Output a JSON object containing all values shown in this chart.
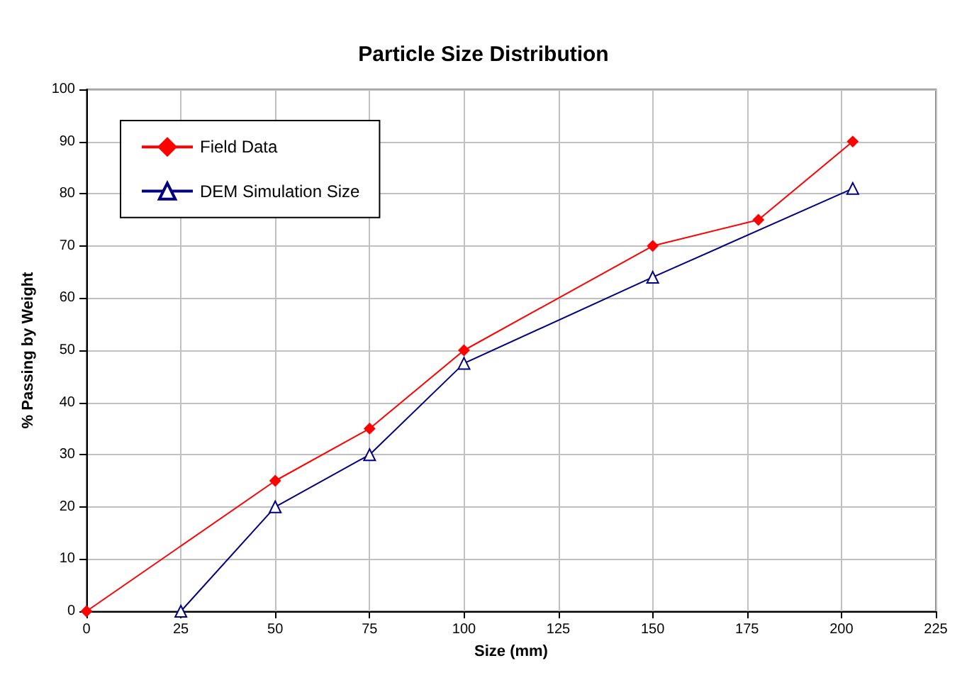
{
  "chart_data": {
    "type": "line",
    "title": "Particle Size Distribution",
    "xlabel": "Size (mm)",
    "ylabel": "% Passing by Weight",
    "xlim": [
      0,
      225
    ],
    "xticks": [
      0,
      25,
      50,
      75,
      100,
      125,
      150,
      175,
      200,
      225
    ],
    "ylim": [
      0,
      100
    ],
    "yticks": [
      0,
      10,
      20,
      30,
      40,
      50,
      60,
      70,
      80,
      90,
      100
    ],
    "grid": true,
    "legend": "top left",
    "line_style": "solid",
    "series": [
      {
        "name": "Field Data",
        "color": "#ff0000",
        "marker": "diamond",
        "x": [
          0,
          50,
          75,
          100,
          150,
          178,
          203
        ],
        "values": [
          0,
          25,
          35,
          50,
          70,
          75,
          90
        ]
      },
      {
        "name": "DEM Simulation Size",
        "color": "#000080",
        "marker": "triangle",
        "x": [
          25,
          50,
          75,
          100,
          150,
          203
        ],
        "values": [
          0,
          20,
          30,
          47.5,
          64,
          81
        ]
      }
    ]
  }
}
